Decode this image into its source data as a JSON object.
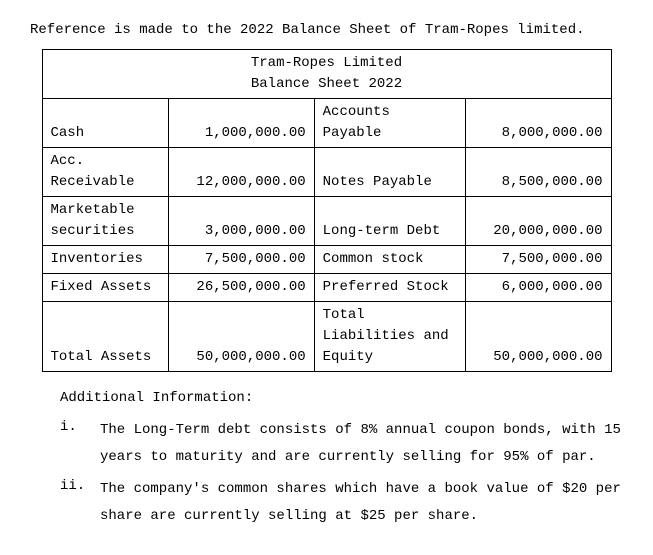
{
  "intro": "Reference is made to the 2022 Balance Sheet of Tram-Ropes limited.",
  "table": {
    "title_line1": "Tram-Ropes Limited",
    "title_line2": "Balance Sheet 2022",
    "rows": [
      {
        "left_label": "Cash",
        "left_value": "1,000,000.00",
        "right_label": "Accounts Payable",
        "right_value": "8,000,000.00"
      },
      {
        "left_label": "Acc. Receivable",
        "left_value": "12,000,000.00",
        "right_label": "Notes Payable",
        "right_value": "8,500,000.00"
      },
      {
        "left_label": "Marketable securities",
        "left_value": "3,000,000.00",
        "right_label": "Long-term Debt",
        "right_value": "20,000,000.00"
      },
      {
        "left_label": "Inventories",
        "left_value": "7,500,000.00",
        "right_label": "Common stock",
        "right_value": "7,500,000.00"
      },
      {
        "left_label": "Fixed Assets",
        "left_value": "26,500,000.00",
        "right_label": "Preferred Stock",
        "right_value": "6,000,000.00"
      },
      {
        "left_label": "Total Assets",
        "left_value": "50,000,000.00",
        "right_label": "Total Liabilities and Equity",
        "right_value": "50,000,000.00"
      }
    ]
  },
  "additional": {
    "heading": "Additional Information:",
    "items": [
      {
        "marker": "i.",
        "text": "The Long-Term debt consists of 8% annual coupon bonds, with 15 years to maturity and are currently selling for 95% of par."
      },
      {
        "marker": "ii.",
        "text": "The company's common shares which have a book value of $20 per share are currently selling at $25 per share."
      }
    ]
  }
}
